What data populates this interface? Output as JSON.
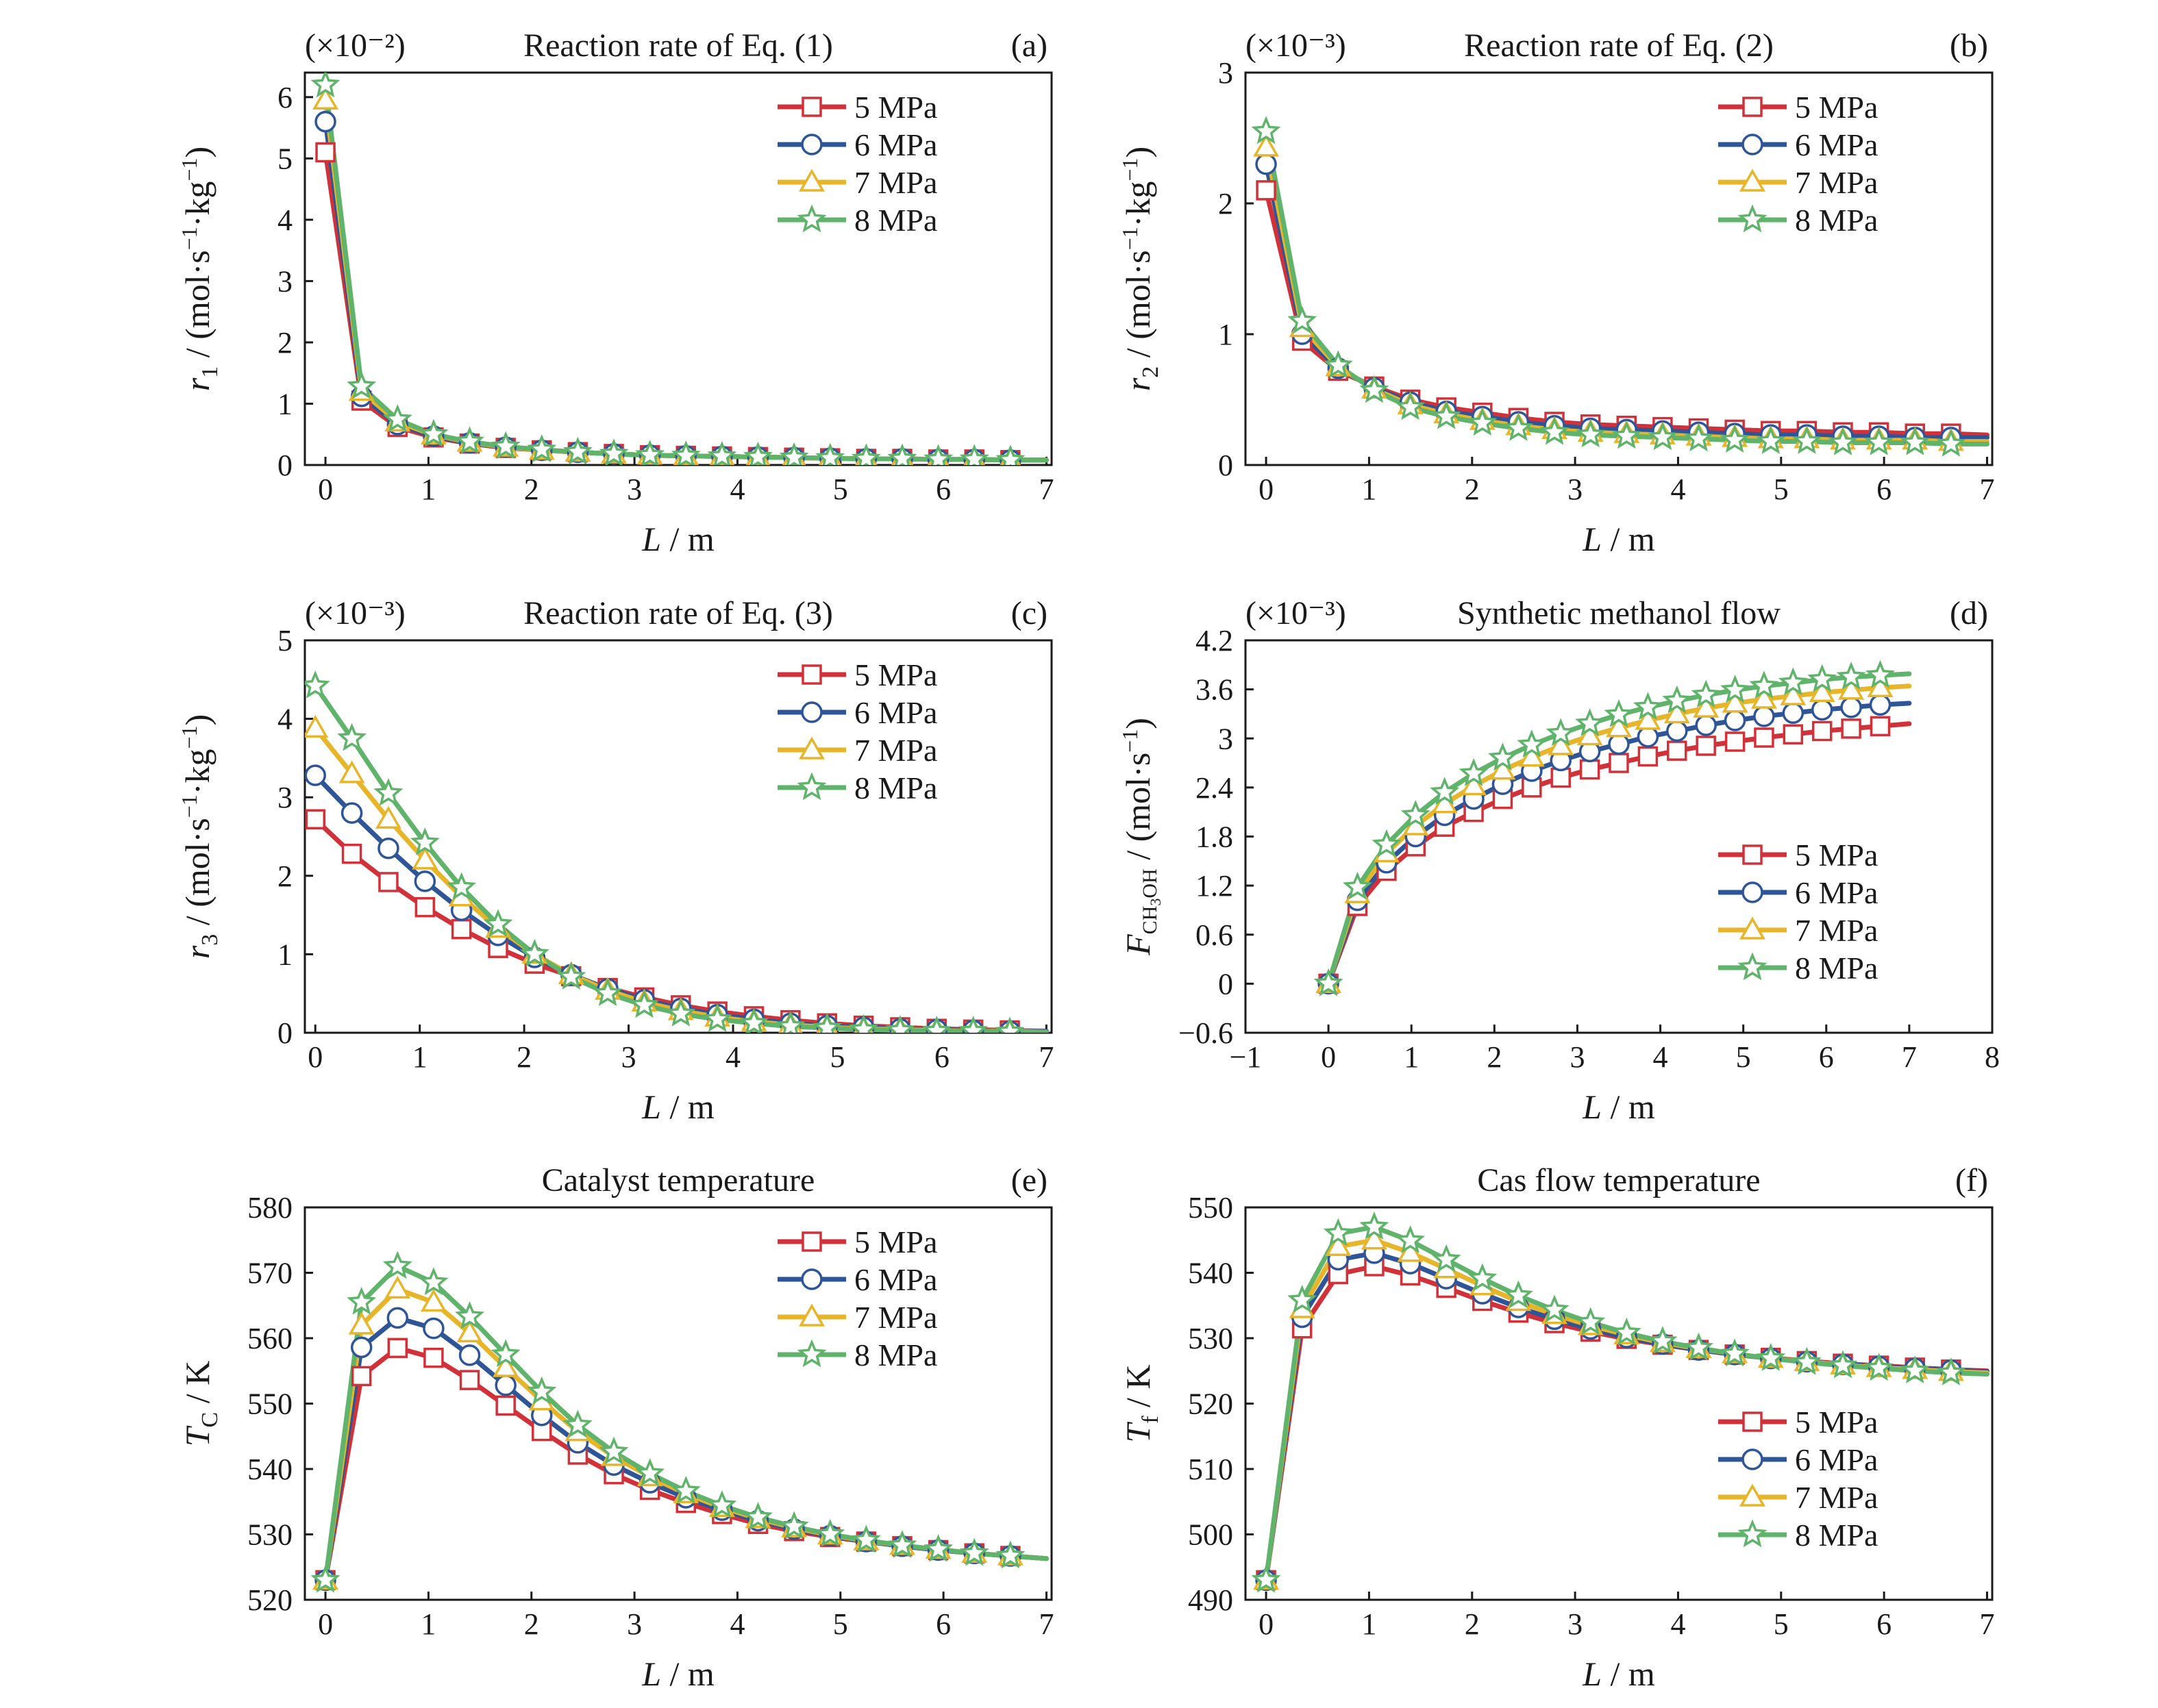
{
  "figure": {
    "colors": {
      "5 MPa": "#d1323a",
      "6 MPa": "#2e5597",
      "7 MPa": "#e7b52a",
      "8 MPa": "#5fb36b"
    },
    "markers": {
      "5 MPa": "square",
      "6 MPa": "circle",
      "7 MPa": "triangle",
      "8 MPa": "star"
    }
  },
  "chart_data": [
    {
      "id": "a",
      "type": "line",
      "title": "Reaction rate of Eq. (1)",
      "panel_label": "(a)",
      "multiplier": "(×10⁻²)",
      "xlabel": "L / m",
      "ylabel": "r₁ / (mol·s⁻¹·kg⁻¹)",
      "xlim": [
        -0.2,
        7.05
      ],
      "ylim": [
        0,
        6.4
      ],
      "xticks": [
        0,
        1,
        2,
        3,
        4,
        5,
        6,
        7
      ],
      "yticks": [
        0,
        1,
        2,
        3,
        4,
        5,
        6
      ],
      "legend_position": "top-right",
      "x": [
        0,
        0.35,
        0.7,
        1.05,
        1.4,
        1.75,
        2.1,
        2.45,
        2.8,
        3.15,
        3.5,
        3.85,
        4.2,
        4.55,
        4.9,
        5.25,
        5.6,
        5.95,
        6.3,
        6.65,
        7.0
      ],
      "series": [
        {
          "name": "5 MPa",
          "values": [
            5.1,
            1.05,
            0.62,
            0.45,
            0.35,
            0.28,
            0.24,
            0.21,
            0.18,
            0.16,
            0.15,
            0.14,
            0.13,
            0.12,
            0.11,
            0.1,
            0.1,
            0.09,
            0.09,
            0.08,
            0.08
          ]
        },
        {
          "name": "6 MPa",
          "values": [
            5.6,
            1.12,
            0.66,
            0.47,
            0.36,
            0.29,
            0.24,
            0.21,
            0.18,
            0.16,
            0.15,
            0.14,
            0.13,
            0.12,
            0.11,
            0.1,
            0.1,
            0.09,
            0.09,
            0.08,
            0.08
          ]
        },
        {
          "name": "7 MPa",
          "values": [
            5.95,
            1.2,
            0.7,
            0.49,
            0.37,
            0.29,
            0.24,
            0.21,
            0.18,
            0.16,
            0.15,
            0.14,
            0.13,
            0.12,
            0.11,
            0.1,
            0.1,
            0.09,
            0.09,
            0.08,
            0.08
          ]
        },
        {
          "name": "8 MPa",
          "values": [
            6.2,
            1.28,
            0.74,
            0.5,
            0.38,
            0.3,
            0.25,
            0.21,
            0.18,
            0.16,
            0.15,
            0.14,
            0.13,
            0.12,
            0.11,
            0.1,
            0.1,
            0.09,
            0.09,
            0.08,
            0.08
          ]
        }
      ]
    },
    {
      "id": "b",
      "type": "line",
      "title": "Reaction rate of Eq. (2)",
      "panel_label": "(b)",
      "multiplier": "(×10⁻³)",
      "xlabel": "L / m",
      "ylabel": "r₂ / (mol·s⁻¹·kg⁻¹)",
      "xlim": [
        -0.2,
        7.05
      ],
      "ylim": [
        0,
        3
      ],
      "xticks": [
        0,
        1,
        2,
        3,
        4,
        5,
        6,
        7
      ],
      "yticks": [
        0,
        1,
        2,
        3
      ],
      "legend_position": "top-right",
      "x": [
        0,
        0.35,
        0.7,
        1.05,
        1.4,
        1.75,
        2.1,
        2.45,
        2.8,
        3.15,
        3.5,
        3.85,
        4.2,
        4.55,
        4.9,
        5.25,
        5.6,
        5.95,
        6.3,
        6.65,
        7.0
      ],
      "series": [
        {
          "name": "5 MPa",
          "values": [
            2.1,
            0.95,
            0.72,
            0.6,
            0.5,
            0.44,
            0.4,
            0.36,
            0.33,
            0.31,
            0.3,
            0.29,
            0.28,
            0.27,
            0.26,
            0.26,
            0.25,
            0.25,
            0.24,
            0.24,
            0.23
          ]
        },
        {
          "name": "6 MPa",
          "values": [
            2.3,
            1.0,
            0.74,
            0.59,
            0.48,
            0.41,
            0.37,
            0.33,
            0.3,
            0.28,
            0.27,
            0.26,
            0.25,
            0.24,
            0.23,
            0.23,
            0.22,
            0.22,
            0.21,
            0.21,
            0.21
          ]
        },
        {
          "name": "7 MPa",
          "values": [
            2.43,
            1.05,
            0.75,
            0.58,
            0.46,
            0.39,
            0.34,
            0.3,
            0.27,
            0.25,
            0.24,
            0.23,
            0.22,
            0.21,
            0.2,
            0.2,
            0.19,
            0.19,
            0.19,
            0.18,
            0.18
          ]
        },
        {
          "name": "8 MPa",
          "values": [
            2.55,
            1.1,
            0.76,
            0.57,
            0.44,
            0.37,
            0.32,
            0.28,
            0.25,
            0.23,
            0.22,
            0.21,
            0.2,
            0.19,
            0.18,
            0.18,
            0.17,
            0.17,
            0.17,
            0.16,
            0.16
          ]
        }
      ]
    },
    {
      "id": "c",
      "type": "line",
      "title": "Reaction rate of Eq. (3)",
      "panel_label": "(c)",
      "multiplier": "(×10⁻³)",
      "xlabel": "L / m",
      "ylabel": "r₃ / (mol·s⁻¹·kg⁻¹)",
      "xlim": [
        -0.1,
        7.05
      ],
      "ylim": [
        0,
        5
      ],
      "xticks": [
        0,
        1,
        2,
        3,
        4,
        5,
        6,
        7
      ],
      "yticks": [
        0,
        1,
        2,
        3,
        4,
        5
      ],
      "legend_position": "top-right",
      "x": [
        0,
        0.35,
        0.7,
        1.05,
        1.4,
        1.75,
        2.1,
        2.45,
        2.8,
        3.15,
        3.5,
        3.85,
        4.2,
        4.55,
        4.9,
        5.25,
        5.6,
        5.95,
        6.3,
        6.65,
        7.0
      ],
      "series": [
        {
          "name": "5 MPa",
          "values": [
            2.72,
            2.28,
            1.92,
            1.6,
            1.32,
            1.08,
            0.88,
            0.72,
            0.57,
            0.45,
            0.35,
            0.27,
            0.21,
            0.16,
            0.12,
            0.09,
            0.07,
            0.05,
            0.04,
            0.03,
            0.02
          ]
        },
        {
          "name": "6 MPa",
          "values": [
            3.28,
            2.8,
            2.35,
            1.93,
            1.56,
            1.24,
            0.96,
            0.74,
            0.56,
            0.42,
            0.31,
            0.23,
            0.17,
            0.12,
            0.09,
            0.07,
            0.05,
            0.04,
            0.03,
            0.02,
            0.02
          ]
        },
        {
          "name": "7 MPa",
          "values": [
            3.88,
            3.3,
            2.72,
            2.2,
            1.73,
            1.33,
            1.0,
            0.74,
            0.54,
            0.39,
            0.28,
            0.2,
            0.14,
            0.1,
            0.07,
            0.05,
            0.04,
            0.03,
            0.02,
            0.02,
            0.01
          ]
        },
        {
          "name": "8 MPa",
          "values": [
            4.42,
            3.75,
            3.05,
            2.42,
            1.85,
            1.38,
            1.0,
            0.71,
            0.5,
            0.35,
            0.24,
            0.17,
            0.12,
            0.08,
            0.06,
            0.04,
            0.03,
            0.02,
            0.02,
            0.01,
            0.01
          ]
        }
      ]
    },
    {
      "id": "d",
      "type": "line",
      "title": "Synthetic methanol flow",
      "panel_label": "(d)",
      "multiplier": "(×10⁻³)",
      "xlabel": "L / m",
      "ylabel": "F_CH3OH / (mol·s⁻¹)",
      "xlim": [
        -1,
        8
      ],
      "ylim": [
        -0.6,
        4.2
      ],
      "xticks": [
        -1,
        0,
        1,
        2,
        3,
        4,
        5,
        6,
        7,
        8
      ],
      "yticks": [
        -0.6,
        0,
        0.6,
        1.2,
        1.8,
        2.4,
        3.0,
        3.6,
        4.2
      ],
      "legend_position": "bottom-right",
      "x": [
        0,
        0.35,
        0.7,
        1.05,
        1.4,
        1.75,
        2.1,
        2.45,
        2.8,
        3.15,
        3.5,
        3.85,
        4.2,
        4.55,
        4.9,
        5.25,
        5.6,
        5.95,
        6.3,
        6.65,
        7.0
      ],
      "series": [
        {
          "name": "5 MPa",
          "values": [
            0.0,
            0.95,
            1.38,
            1.68,
            1.92,
            2.1,
            2.26,
            2.4,
            2.52,
            2.62,
            2.7,
            2.78,
            2.85,
            2.91,
            2.96,
            3.01,
            3.05,
            3.09,
            3.12,
            3.15,
            3.18
          ]
        },
        {
          "name": "6 MPa",
          "values": [
            0.0,
            1.02,
            1.48,
            1.8,
            2.06,
            2.26,
            2.44,
            2.6,
            2.73,
            2.84,
            2.93,
            3.02,
            3.09,
            3.16,
            3.22,
            3.27,
            3.31,
            3.35,
            3.38,
            3.41,
            3.43
          ]
        },
        {
          "name": "7 MPa",
          "values": [
            0.0,
            1.1,
            1.6,
            1.93,
            2.2,
            2.42,
            2.61,
            2.77,
            2.91,
            3.03,
            3.13,
            3.22,
            3.3,
            3.37,
            3.43,
            3.48,
            3.52,
            3.56,
            3.59,
            3.62,
            3.64
          ]
        },
        {
          "name": "8 MPa",
          "values": [
            0.0,
            1.18,
            1.7,
            2.06,
            2.34,
            2.57,
            2.76,
            2.92,
            3.06,
            3.18,
            3.29,
            3.38,
            3.46,
            3.53,
            3.59,
            3.64,
            3.68,
            3.72,
            3.75,
            3.77,
            3.79
          ]
        }
      ]
    },
    {
      "id": "e",
      "type": "line",
      "title": "Catalyst temperature",
      "panel_label": "(e)",
      "multiplier": "",
      "xlabel": "L / m",
      "ylabel": "T_C / K",
      "xlim": [
        -0.2,
        7.05
      ],
      "ylim": [
        520,
        580
      ],
      "xticks": [
        0,
        1,
        2,
        3,
        4,
        5,
        6,
        7
      ],
      "yticks": [
        520,
        530,
        540,
        550,
        560,
        570,
        580
      ],
      "legend_position": "top-right",
      "x": [
        0,
        0.35,
        0.7,
        1.05,
        1.4,
        1.75,
        2.1,
        2.45,
        2.8,
        3.15,
        3.5,
        3.85,
        4.2,
        4.55,
        4.9,
        5.25,
        5.6,
        5.95,
        6.3,
        6.65,
        7.0
      ],
      "series": [
        {
          "name": "5 MPa",
          "values": [
            523,
            554.2,
            558.5,
            557.0,
            553.6,
            549.7,
            545.8,
            542.2,
            539.2,
            536.8,
            534.8,
            533.1,
            531.6,
            530.5,
            529.6,
            528.9,
            528.2,
            527.6,
            527.1,
            526.7,
            526.3
          ]
        },
        {
          "name": "6 MPa",
          "values": [
            523,
            558.6,
            563.1,
            561.5,
            557.4,
            552.8,
            548.2,
            544.0,
            540.6,
            537.9,
            535.6,
            533.7,
            532.1,
            530.8,
            529.8,
            528.9,
            528.2,
            527.6,
            527.1,
            526.7,
            526.3
          ]
        },
        {
          "name": "7 MPa",
          "values": [
            523,
            562.0,
            567.5,
            565.5,
            560.8,
            555.5,
            550.4,
            545.7,
            541.9,
            538.8,
            536.2,
            534.1,
            532.4,
            531.0,
            529.9,
            529.0,
            528.3,
            527.7,
            527.1,
            526.7,
            526.3
          ]
        },
        {
          "name": "8 MPa",
          "values": [
            523,
            565.5,
            571.0,
            568.5,
            563.3,
            557.5,
            551.8,
            546.7,
            542.6,
            539.3,
            536.6,
            534.4,
            532.6,
            531.2,
            530.0,
            529.1,
            528.3,
            527.7,
            527.1,
            526.7,
            526.3
          ]
        }
      ]
    },
    {
      "id": "f",
      "type": "line",
      "title": "Cas flow temperature",
      "panel_label": "(f)",
      "multiplier": "",
      "xlabel": "L / m",
      "ylabel": "T_f / K",
      "xlim": [
        -0.2,
        7.05
      ],
      "ylim": [
        490,
        550
      ],
      "xticks": [
        0,
        1,
        2,
        3,
        4,
        5,
        6,
        7
      ],
      "yticks": [
        490,
        500,
        510,
        520,
        530,
        540,
        550
      ],
      "legend_position": "bottom-right",
      "x": [
        0,
        0.35,
        0.7,
        1.05,
        1.4,
        1.75,
        2.1,
        2.45,
        2.8,
        3.15,
        3.5,
        3.85,
        4.2,
        4.55,
        4.9,
        5.25,
        5.6,
        5.95,
        6.3,
        6.65,
        7.0
      ],
      "series": [
        {
          "name": "5 MPa",
          "values": [
            493,
            531.5,
            539.8,
            541.0,
            539.6,
            537.7,
            535.7,
            533.9,
            532.3,
            531.0,
            529.9,
            529.0,
            528.2,
            527.5,
            527.0,
            526.5,
            526.1,
            525.8,
            525.5,
            525.2,
            525.0
          ]
        },
        {
          "name": "6 MPa",
          "values": [
            493,
            533.2,
            542.0,
            543.0,
            541.4,
            539.1,
            536.8,
            534.7,
            532.9,
            531.4,
            530.1,
            529.1,
            528.2,
            527.5,
            526.9,
            526.4,
            526.0,
            525.7,
            525.4,
            525.1,
            524.9
          ]
        },
        {
          "name": "7 MPa",
          "values": [
            493,
            534.5,
            544.0,
            545.0,
            543.1,
            540.6,
            538.0,
            535.6,
            533.6,
            531.9,
            530.5,
            529.3,
            528.4,
            527.6,
            526.9,
            526.4,
            525.9,
            525.5,
            525.2,
            524.9,
            524.7
          ]
        },
        {
          "name": "8 MPa",
          "values": [
            493,
            535.8,
            546.0,
            547.0,
            544.9,
            542.0,
            539.1,
            536.5,
            534.3,
            532.4,
            530.8,
            529.5,
            528.5,
            527.6,
            526.9,
            526.3,
            525.8,
            525.4,
            525.0,
            524.7,
            524.5
          ]
        }
      ]
    }
  ]
}
